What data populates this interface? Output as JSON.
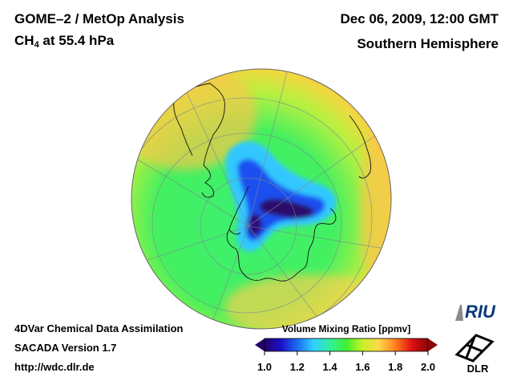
{
  "header": {
    "title_line1": "GOME–2 / MetOp Analysis",
    "title_line2_main": "CH",
    "title_line2_sub": "4",
    "title_line2_rest": " at 55.4 hPa",
    "date": "Dec 06, 2009, 12:00 GMT",
    "region": "Southern Hemisphere"
  },
  "footer": {
    "line1": "4DVar Chemical Data Assimilation",
    "line2": "SACADA Version 1.7",
    "line3": "http://wdc.dlr.de"
  },
  "colorbar": {
    "title": "Volume Mixing Ratio [ppmv]",
    "ticks": [
      "1.0",
      "1.2",
      "1.4",
      "1.6",
      "1.8",
      "2.0"
    ],
    "min": 1.0,
    "max": 2.0,
    "colors": [
      "#25006a",
      "#1a10c8",
      "#1a6cf0",
      "#2fd0ff",
      "#32ee9e",
      "#40f030",
      "#c8f028",
      "#ffd84a",
      "#ff8020",
      "#e01010",
      "#8a0606"
    ]
  },
  "map": {
    "projection": "orthographic-south-polar",
    "field_colors": {
      "outer": "#f8c040",
      "mid": "#b8f040",
      "inner": "#3cf070",
      "vortex_edge": "#30c8ff",
      "vortex_mid": "#1a40e8",
      "vortex_core": "#2a0a6a"
    }
  },
  "logos": {
    "riu": "RIU",
    "dlr": "DLR"
  }
}
